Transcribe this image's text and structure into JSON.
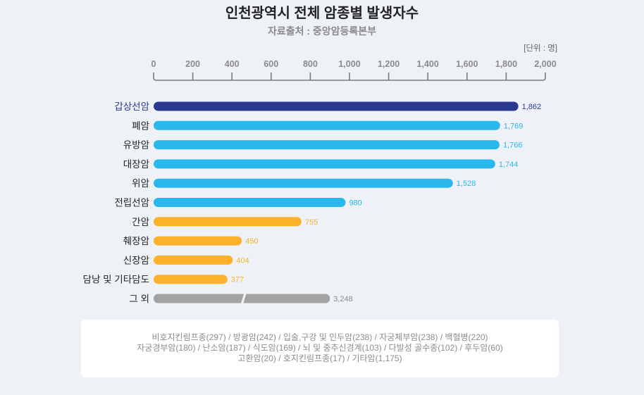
{
  "title": "인천광역시 전체 암종별 발생자수",
  "subtitle": "자료출처 : 중앙암등록본부",
  "unit": "[단위 : 명]",
  "colors": {
    "navy": "#2b3990",
    "cyan": "#29b8ec",
    "orange": "#fbb129",
    "gray": "#a2a2a2",
    "axis": "#7a7a7a",
    "label": "#222222"
  },
  "chart_data": {
    "type": "bar",
    "orientation": "horizontal",
    "title": "인천광역시 전체 암종별 발생자수",
    "xlim": [
      0,
      2000
    ],
    "ticks": [
      "0",
      "200",
      "400",
      "600",
      "800",
      "1,000",
      "1,200",
      "1,400",
      "1,600",
      "1,800",
      "2,000"
    ],
    "categories": [
      "갑상선암",
      "폐암",
      "유방암",
      "대장암",
      "위암",
      "전립선암",
      "간암",
      "췌장암",
      "신장암",
      "담낭 및 기타담도",
      "그 외"
    ],
    "values": [
      1862,
      1769,
      1766,
      1744,
      1528,
      980,
      755,
      450,
      404,
      377,
      3248
    ],
    "value_labels": [
      "1,862",
      "1,769",
      "1,766",
      "1,744",
      "1,528",
      "980",
      "755",
      "450",
      "404",
      "377",
      "3,248"
    ],
    "color_groups": [
      "navy",
      "cyan",
      "cyan",
      "cyan",
      "cyan",
      "cyan",
      "orange",
      "orange",
      "orange",
      "orange",
      "gray"
    ],
    "broken_axis_category": "그 외"
  },
  "notes": [
    "비호지킨림프종(297) / 방광암(242) /  입술,구강 및 인두암(238) / 자궁체부암(238) / 백혈병(220)",
    "자궁경부암(180) / 난소암(187) / 식도암(169) / 뇌 및 중추신경계(103) / 다발성 골수종(102) / 후두암(60)",
    "고환암(20) / 호지킨림프종(17) / 기타암(1,175)"
  ]
}
